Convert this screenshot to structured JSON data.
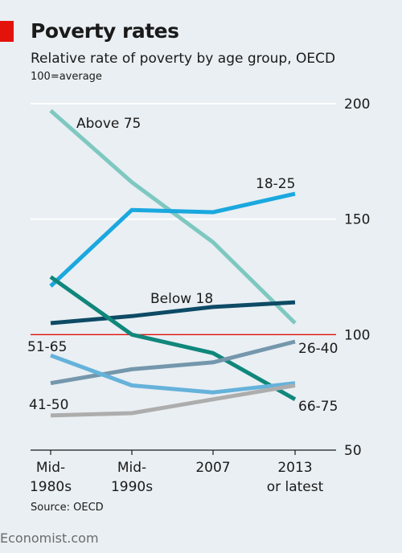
{
  "header": {
    "title": "Poverty rates",
    "subtitle": "Relative rate of poverty by age group, OECD",
    "note": "100=average"
  },
  "footer": {
    "source": "Source: OECD",
    "brand": "Economist.com"
  },
  "chart_data": {
    "type": "line",
    "categories": [
      [
        "Mid-",
        "1980s"
      ],
      [
        "Mid-",
        "1990s"
      ],
      [
        "2007"
      ],
      [
        "2013",
        "or latest"
      ]
    ],
    "ylim": [
      50,
      200
    ],
    "yticks": [
      50,
      100,
      150,
      200
    ],
    "reference_line": 100,
    "grid": true,
    "series": [
      {
        "name": "Above 75",
        "values": [
          197,
          166,
          140,
          105
        ],
        "color": "#7ec8c0"
      },
      {
        "name": "18-25",
        "values": [
          121,
          154,
          153,
          161
        ],
        "color": "#1aa8df"
      },
      {
        "name": "Below 18",
        "values": [
          105,
          108,
          112,
          114
        ],
        "color": "#0d4a65"
      },
      {
        "name": "66-75",
        "values": [
          125,
          100,
          92,
          72
        ],
        "color": "#10877b"
      },
      {
        "name": "26-40",
        "values": [
          79,
          85,
          88,
          97
        ],
        "color": "#7497ac"
      },
      {
        "name": "51-65",
        "values": [
          91,
          78,
          75,
          79
        ],
        "color": "#65b2da"
      },
      {
        "name": "41-50",
        "values": [
          65,
          66,
          72,
          78
        ],
        "color": "#adadad"
      }
    ]
  }
}
